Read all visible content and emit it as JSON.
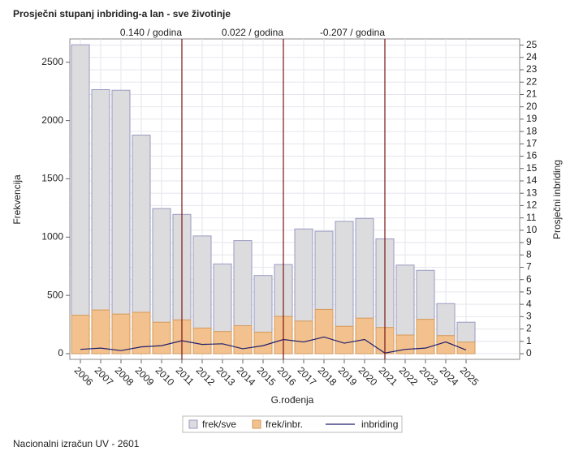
{
  "chart_data": {
    "type": "bar",
    "title": "Prosječni stupanj inbriding-a lan - sve životinje",
    "x_label": "G.rođenja",
    "y_label": "Frekvencija",
    "y2_label": "Prosječni inbriding",
    "footer": "Nacionalni izračun UV - 2601",
    "categories": [
      "2006",
      "2007",
      "2008",
      "2009",
      "2010",
      "2011",
      "2012",
      "2013",
      "2014",
      "2015",
      "2016",
      "2017",
      "2018",
      "2019",
      "2020",
      "2021",
      "2022",
      "2023",
      "2024",
      "2025"
    ],
    "series": [
      {
        "name": "frek/sve",
        "type": "bar",
        "color": "#dcdcde",
        "stroke": "#9a9ac2",
        "values": [
          2650,
          2265,
          2260,
          1875,
          1245,
          1195,
          1010,
          770,
          970,
          670,
          765,
          1070,
          1050,
          1135,
          1160,
          985,
          760,
          715,
          430,
          270
        ]
      },
      {
        "name": "frek/inbr.",
        "type": "bar",
        "color": "#f3c18e",
        "stroke": "#d39a5c",
        "values": [
          330,
          375,
          340,
          355,
          270,
          290,
          220,
          190,
          240,
          185,
          320,
          280,
          380,
          235,
          305,
          225,
          160,
          295,
          155,
          100
        ]
      },
      {
        "name": "inbriding",
        "type": "line",
        "axis": "y2",
        "color": "#1f1f6e",
        "values": [
          0.35,
          0.45,
          0.25,
          0.55,
          0.65,
          1.05,
          0.75,
          0.8,
          0.4,
          0.65,
          1.15,
          0.95,
          1.35,
          0.85,
          1.15,
          0.05,
          0.35,
          0.45,
          0.95,
          0.3
        ]
      }
    ],
    "reference_lines": [
      {
        "category": "2011",
        "label": "0.140 / godina"
      },
      {
        "category": "2016",
        "label": "0.022 / godina"
      },
      {
        "category": "2021",
        "label": "-0.207 / godina"
      }
    ],
    "reference_color": "#7a1414",
    "ylim": [
      0,
      2700
    ],
    "yticks": [
      0,
      500,
      1000,
      1500,
      2000,
      2500
    ],
    "y2lim": [
      0,
      25.5
    ],
    "y2ticks": [
      0,
      1,
      2,
      3,
      4,
      5,
      6,
      7,
      8,
      9,
      10,
      11,
      12,
      13,
      14,
      15,
      16,
      17,
      18,
      19,
      20,
      21,
      22,
      23,
      24,
      25
    ],
    "grid": true
  }
}
